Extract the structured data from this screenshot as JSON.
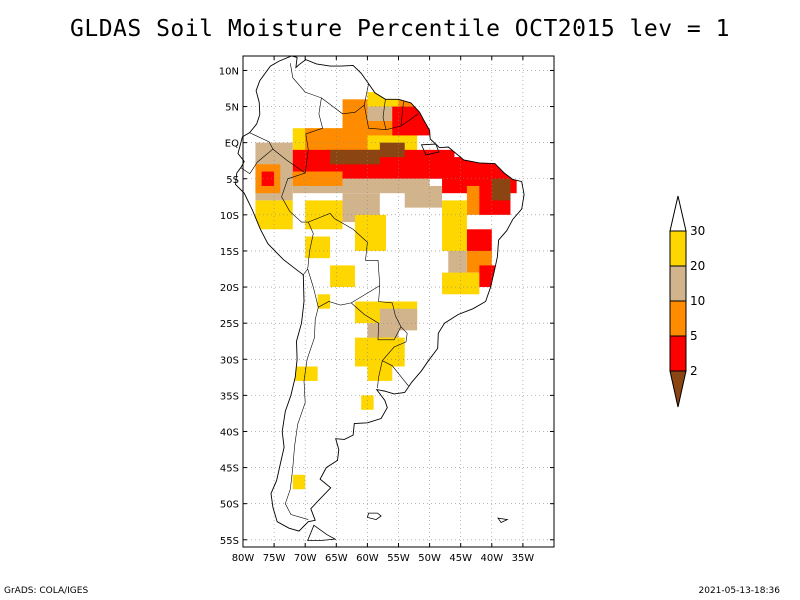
{
  "title": "GLDAS Soil Moisture Percentile OCT2015 lev = 1",
  "footer": {
    "left": "GrADS: COLA/IGES",
    "right": "2021-05-13-18:36"
  },
  "map": {
    "lon_range": [
      -80,
      -30
    ],
    "lat_range": [
      -56,
      12
    ],
    "lon_ticks": [
      {
        "value": -80,
        "label": "80W"
      },
      {
        "value": -75,
        "label": "75W"
      },
      {
        "value": -70,
        "label": "70W"
      },
      {
        "value": -65,
        "label": "65W"
      },
      {
        "value": -60,
        "label": "60W"
      },
      {
        "value": -55,
        "label": "55W"
      },
      {
        "value": -50,
        "label": "50W"
      },
      {
        "value": -45,
        "label": "45W"
      },
      {
        "value": -40,
        "label": "40W"
      },
      {
        "value": -35,
        "label": "35W"
      }
    ],
    "lat_ticks": [
      {
        "value": 10,
        "label": "10N"
      },
      {
        "value": 5,
        "label": "5N"
      },
      {
        "value": 0,
        "label": "EQ"
      },
      {
        "value": -5,
        "label": "5S"
      },
      {
        "value": -10,
        "label": "10S"
      },
      {
        "value": -15,
        "label": "15S"
      },
      {
        "value": -20,
        "label": "20S"
      },
      {
        "value": -25,
        "label": "25S"
      },
      {
        "value": -30,
        "label": "30S"
      },
      {
        "value": -35,
        "label": "35S"
      },
      {
        "value": -40,
        "label": "40S"
      },
      {
        "value": -45,
        "label": "45S"
      },
      {
        "value": -50,
        "label": "50S"
      },
      {
        "value": -55,
        "label": "55S"
      }
    ],
    "grid": true
  },
  "legend": {
    "levels": [
      "2",
      "5",
      "10",
      "20",
      "30"
    ],
    "colors": {
      "lt2": "#8b4513",
      "2-5": "#ff0000",
      "5-10": "#ff8c00",
      "10-20": "#d2b48c",
      "20-30": "#ffd700",
      "gt30": "#ffffff"
    }
  },
  "field": {
    "note_colors": {
      "brown": "#8b4513",
      "red": "#ff0000",
      "orange": "#ff8c00",
      "tan": "#d2b48c",
      "yellow": "#ffd700"
    },
    "regions": [
      {
        "cls": "yellow",
        "lon": [
          -72,
          -52
        ],
        "lat": [
          -3,
          2
        ]
      },
      {
        "cls": "tan",
        "lon": [
          -78,
          -72
        ],
        "lat": [
          -8,
          0
        ]
      },
      {
        "cls": "orange",
        "lon": [
          -78,
          -74
        ],
        "lat": [
          -7,
          -3
        ]
      },
      {
        "cls": "red",
        "lon": [
          -77,
          -75
        ],
        "lat": [
          -6,
          -4
        ]
      },
      {
        "cls": "yellow",
        "lon": [
          -78,
          -72
        ],
        "lat": [
          -12,
          -8
        ]
      },
      {
        "cls": "orange",
        "lon": [
          -64,
          -52
        ],
        "lat": [
          1,
          6
        ]
      },
      {
        "cls": "tan",
        "lon": [
          -60,
          -56
        ],
        "lat": [
          3,
          6
        ]
      },
      {
        "cls": "yellow",
        "lon": [
          -60,
          -55
        ],
        "lat": [
          5,
          7
        ]
      },
      {
        "cls": "red",
        "lon": [
          -56,
          -50
        ],
        "lat": [
          1,
          5
        ]
      },
      {
        "cls": "orange",
        "lon": [
          -70,
          -60
        ],
        "lat": [
          -2,
          2
        ]
      },
      {
        "cls": "red",
        "lon": [
          -72,
          -46
        ],
        "lat": [
          -5,
          -1
        ]
      },
      {
        "cls": "brown",
        "lon": [
          -66,
          -58
        ],
        "lat": [
          -3,
          -1
        ]
      },
      {
        "cls": "brown",
        "lon": [
          -58,
          -54
        ],
        "lat": [
          -2,
          0
        ]
      },
      {
        "cls": "red",
        "lon": [
          -48,
          -36
        ],
        "lat": [
          -7,
          -2
        ]
      },
      {
        "cls": "orange",
        "lon": [
          -44,
          -40
        ],
        "lat": [
          -10,
          -6
        ]
      },
      {
        "cls": "red",
        "lon": [
          -42,
          -37
        ],
        "lat": [
          -10,
          -5
        ]
      },
      {
        "cls": "brown",
        "lon": [
          -40,
          -37
        ],
        "lat": [
          -8,
          -5
        ]
      },
      {
        "cls": "tan",
        "lon": [
          -72,
          -50
        ],
        "lat": [
          -7,
          -5
        ]
      },
      {
        "cls": "orange",
        "lon": [
          -72,
          -64
        ],
        "lat": [
          -6,
          -4
        ]
      },
      {
        "cls": "tan",
        "lon": [
          -64,
          -58
        ],
        "lat": [
          -11,
          -7
        ]
      },
      {
        "cls": "yellow",
        "lon": [
          -62,
          -57
        ],
        "lat": [
          -15,
          -10
        ]
      },
      {
        "cls": "yellow",
        "lon": [
          -70,
          -64
        ],
        "lat": [
          -12,
          -8
        ]
      },
      {
        "cls": "tan",
        "lon": [
          -54,
          -48
        ],
        "lat": [
          -9,
          -6
        ]
      },
      {
        "cls": "yellow",
        "lon": [
          -48,
          -44
        ],
        "lat": [
          -15,
          -8
        ]
      },
      {
        "cls": "red",
        "lon": [
          -44,
          -40
        ],
        "lat": [
          -16,
          -12
        ]
      },
      {
        "cls": "orange",
        "lon": [
          -44,
          -40
        ],
        "lat": [
          -18,
          -15
        ]
      },
      {
        "cls": "tan",
        "lon": [
          -47,
          -44
        ],
        "lat": [
          -19,
          -15
        ]
      },
      {
        "cls": "yellow",
        "lon": [
          -48,
          -42
        ],
        "lat": [
          -21,
          -18
        ]
      },
      {
        "cls": "red",
        "lon": [
          -42,
          -39
        ],
        "lat": [
          -20,
          -17
        ]
      },
      {
        "cls": "yellow",
        "lon": [
          -66,
          -62
        ],
        "lat": [
          -20,
          -17
        ]
      },
      {
        "cls": "yellow",
        "lon": [
          -70,
          -66
        ],
        "lat": [
          -16,
          -13
        ]
      },
      {
        "cls": "yellow",
        "lon": [
          -62,
          -52
        ],
        "lat": [
          -25,
          -22
        ]
      },
      {
        "cls": "tan",
        "lon": [
          -60,
          -55
        ],
        "lat": [
          -29,
          -25
        ]
      },
      {
        "cls": "yellow",
        "lon": [
          -62,
          -54
        ],
        "lat": [
          -31,
          -27
        ]
      },
      {
        "cls": "tan",
        "lon": [
          -58,
          -52
        ],
        "lat": [
          -26,
          -23
        ]
      },
      {
        "cls": "yellow",
        "lon": [
          -60,
          -56
        ],
        "lat": [
          -33,
          -31
        ]
      },
      {
        "cls": "yellow",
        "lon": [
          -72,
          -68
        ],
        "lat": [
          -33,
          -31
        ]
      },
      {
        "cls": "yellow",
        "lon": [
          -61,
          -59
        ],
        "lat": [
          -37,
          -35
        ]
      },
      {
        "cls": "yellow",
        "lon": [
          -72,
          -70
        ],
        "lat": [
          -48,
          -46
        ]
      },
      {
        "cls": "yellow",
        "lon": [
          -68,
          -66
        ],
        "lat": [
          -23,
          -21
        ]
      }
    ]
  }
}
